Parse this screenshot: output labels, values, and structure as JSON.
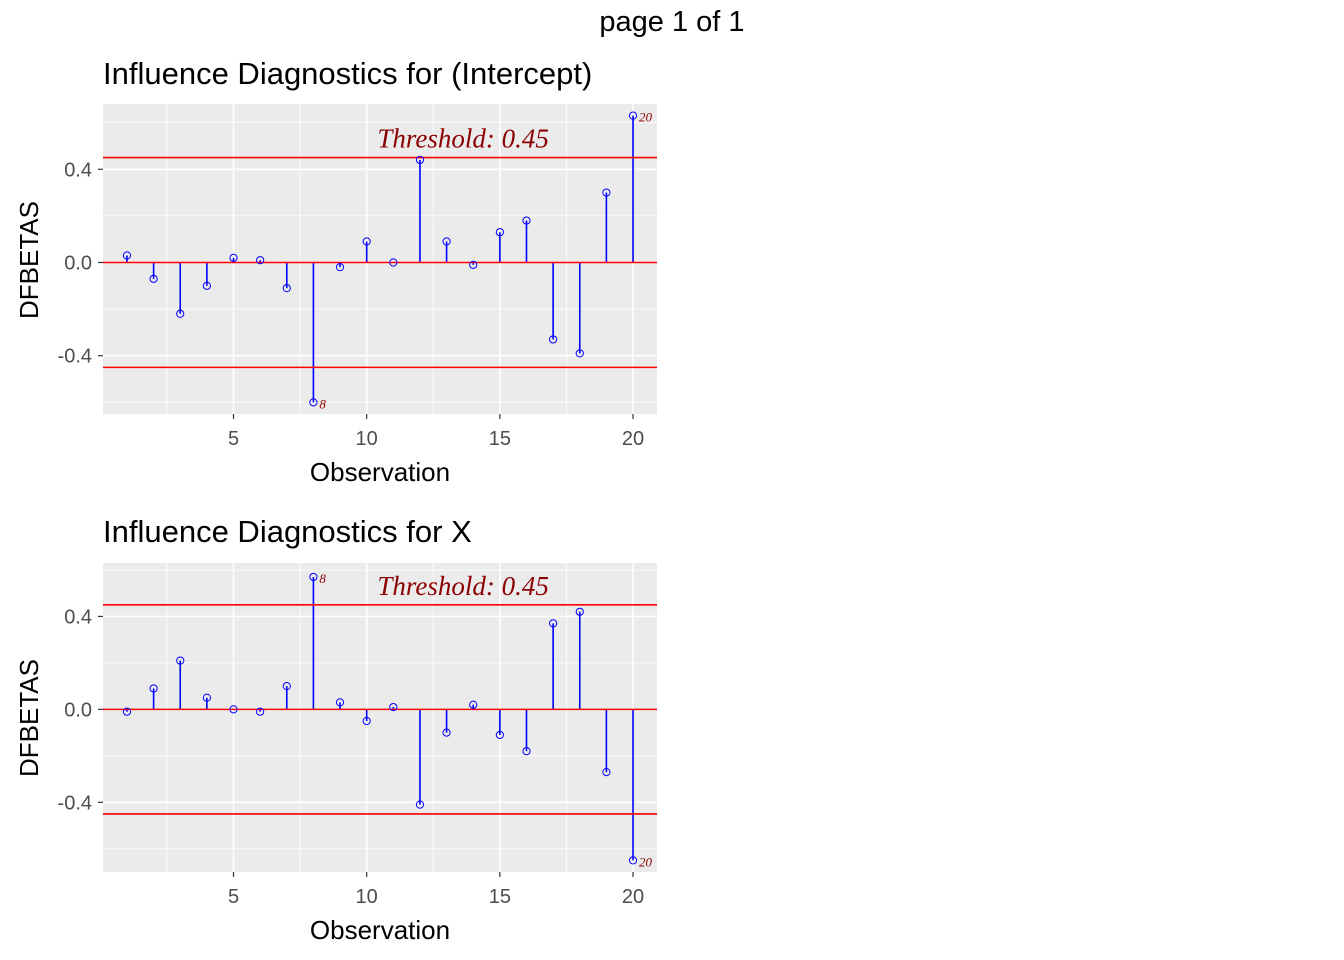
{
  "page_label": "page 1 of 1",
  "colors": {
    "panel_background": "#ebebeb",
    "grid": "#ffffff",
    "stem": "#0000ff",
    "reference_line": "#ff0000",
    "threshold_text": "#8b0000"
  },
  "chart_data": [
    {
      "type": "scatter",
      "subtype": "lollipop",
      "title": "Influence Diagnostics for (Intercept)",
      "xlabel": "Observation",
      "ylabel": "DFBETAS",
      "xlim": [
        0.1,
        20.9
      ],
      "ylim": [
        -0.65,
        0.68
      ],
      "x_ticks": [
        5,
        10,
        15,
        20
      ],
      "y_ticks": [
        -0.4,
        0.0,
        0.4
      ],
      "y_tick_labels": [
        "-0.4",
        "0.0",
        "0.4"
      ],
      "threshold": 0.45,
      "threshold_label": "Threshold: 0.45",
      "grid": true,
      "x": [
        1,
        2,
        3,
        4,
        5,
        6,
        7,
        8,
        9,
        10,
        11,
        12,
        13,
        14,
        15,
        16,
        17,
        18,
        19,
        20
      ],
      "values": [
        0.03,
        -0.07,
        -0.22,
        -0.1,
        0.02,
        0.01,
        -0.11,
        -0.6,
        -0.02,
        0.09,
        0.0,
        0.44,
        0.09,
        -0.01,
        0.13,
        0.18,
        -0.33,
        -0.39,
        0.3,
        0.63
      ],
      "outliers": [
        {
          "x": 8,
          "label": "8"
        },
        {
          "x": 20,
          "label": "20"
        }
      ]
    },
    {
      "type": "scatter",
      "subtype": "lollipop",
      "title": "Influence Diagnostics for X",
      "xlabel": "Observation",
      "ylabel": "DFBETAS",
      "xlim": [
        0.1,
        20.9
      ],
      "ylim": [
        -0.7,
        0.63
      ],
      "x_ticks": [
        5,
        10,
        15,
        20
      ],
      "y_ticks": [
        -0.4,
        0.0,
        0.4
      ],
      "y_tick_labels": [
        "-0.4",
        "0.0",
        "0.4"
      ],
      "threshold": 0.45,
      "threshold_label": "Threshold: 0.45",
      "grid": true,
      "x": [
        1,
        2,
        3,
        4,
        5,
        6,
        7,
        8,
        9,
        10,
        11,
        12,
        13,
        14,
        15,
        16,
        17,
        18,
        19,
        20
      ],
      "values": [
        -0.01,
        0.09,
        0.21,
        0.05,
        0.0,
        -0.01,
        0.1,
        0.57,
        0.03,
        -0.05,
        0.01,
        -0.41,
        -0.1,
        0.02,
        -0.11,
        -0.18,
        0.37,
        0.42,
        -0.27,
        -0.65
      ],
      "outliers": [
        {
          "x": 8,
          "label": "8"
        },
        {
          "x": 20,
          "label": "20"
        }
      ]
    }
  ]
}
